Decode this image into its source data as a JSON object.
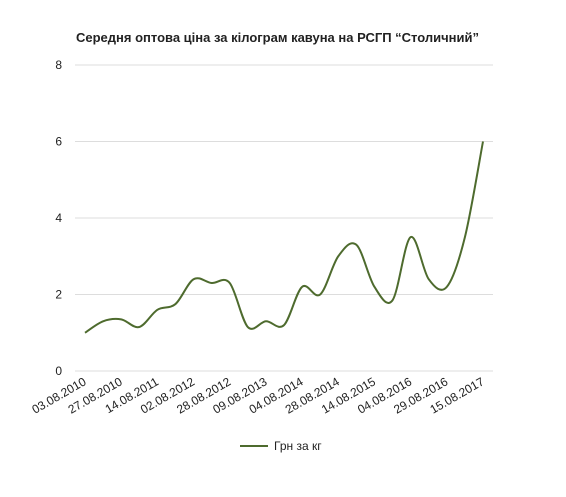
{
  "chart_data": {
    "type": "line",
    "title": "Середня оптова ціна за кілограм кавуна на РСГП “Столичний”",
    "categories": [
      "03.08.2010",
      null,
      "27.08.2010",
      null,
      "14.08.2011",
      null,
      "02.08.2012",
      null,
      "28.08.2012",
      null,
      "09.08.2013",
      null,
      "04.08.2014",
      null,
      "28.08.2014",
      null,
      "14.08.2015",
      null,
      "04.08.2016",
      null,
      "29.08.2016",
      null,
      "15.08.2017"
    ],
    "series": [
      {
        "name": "Грн за кг",
        "color": "#4e6b2e",
        "values": [
          1.0,
          1.3,
          1.35,
          1.15,
          1.6,
          1.75,
          2.4,
          2.3,
          2.3,
          1.15,
          1.3,
          1.2,
          2.2,
          2.0,
          3.0,
          3.3,
          2.2,
          1.85,
          3.5,
          2.4,
          2.2,
          3.5,
          6.0
        ]
      }
    ],
    "ylim": [
      0,
      8
    ],
    "yticks": [
      0,
      2,
      4,
      6,
      8
    ],
    "grid": true,
    "legend": "bottom"
  }
}
